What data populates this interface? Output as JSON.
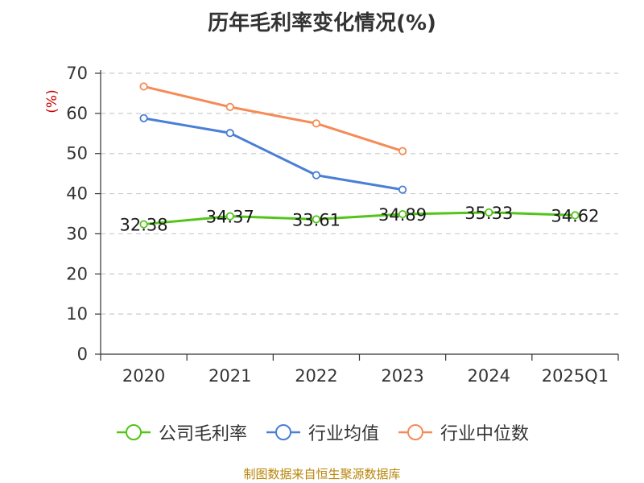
{
  "title": "历年毛利率变化情况(%)",
  "source_note": "制图数据来自恒生聚源数据库",
  "colors": {
    "company": "#52c41a",
    "industry_avg": "#4a7fd6",
    "industry_median": "#f58b55",
    "unit_label": "#cc0000",
    "source_note": "#b8860b"
  },
  "chart_data": {
    "type": "line",
    "title": "历年毛利率变化情况(%)",
    "ylabel": "(%)",
    "xlabel": "",
    "categories": [
      "2020",
      "2021",
      "2022",
      "2023",
      "2024",
      "2025Q1"
    ],
    "ylim": [
      0,
      70
    ],
    "yticks": [
      0,
      10,
      20,
      30,
      40,
      50,
      60,
      70
    ],
    "grid": true,
    "legend_position": "bottom",
    "series": [
      {
        "name": "公司毛利率",
        "values": [
          32.38,
          34.37,
          33.61,
          34.89,
          35.33,
          34.62
        ],
        "show_labels": true
      },
      {
        "name": "行业均值",
        "values": [
          58.8,
          55.1,
          44.6,
          41.0,
          null,
          null
        ],
        "show_labels": false
      },
      {
        "name": "行业中位数",
        "values": [
          66.7,
          61.6,
          57.5,
          50.6,
          null,
          null
        ],
        "show_labels": false
      }
    ],
    "data_labels": [
      "32.38",
      "34.37",
      "33.61",
      "34.89",
      "35.33",
      "34.62"
    ]
  }
}
